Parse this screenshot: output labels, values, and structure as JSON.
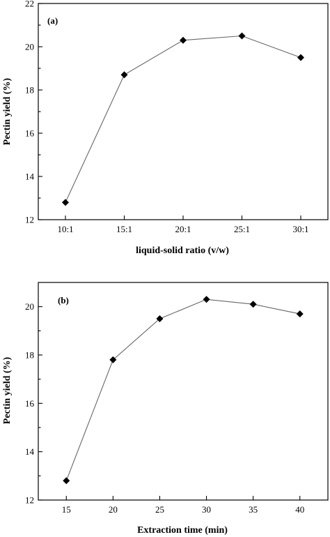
{
  "chart_data": [
    {
      "type": "line",
      "panel_label": "(a)",
      "x_scale": "categorical",
      "categories": [
        "10:1",
        "15:1",
        "20:1",
        "25:1",
        "30:1"
      ],
      "x": [
        "10:1",
        "15:1",
        "20:1",
        "25:1",
        "30:1"
      ],
      "series": [
        {
          "values": [
            12.8,
            18.7,
            20.3,
            20.5,
            19.5
          ],
          "marker": "diamond",
          "color": "#000000"
        }
      ],
      "xlabel": "liquid-solid ratio (v/w)",
      "ylabel": "Pectin yield (%)",
      "ylim": [
        12,
        22
      ],
      "yticks": [
        12,
        14,
        16,
        18,
        20,
        22
      ],
      "grid": false
    },
    {
      "type": "line",
      "panel_label": "(b)",
      "x_scale": "linear",
      "x": [
        15,
        20,
        25,
        30,
        35,
        40
      ],
      "series": [
        {
          "values": [
            12.8,
            17.8,
            19.5,
            20.3,
            20.1,
            19.7
          ],
          "marker": "diamond",
          "color": "#000000"
        }
      ],
      "xlabel": "Extraction time (min)",
      "ylabel": "Pectin yield (%)",
      "xlim": [
        12,
        43
      ],
      "xticks": [
        15,
        20,
        25,
        30,
        35,
        40
      ],
      "ylim": [
        12,
        21
      ],
      "yticks": [
        12,
        14,
        16,
        18,
        20
      ],
      "grid": false
    }
  ]
}
